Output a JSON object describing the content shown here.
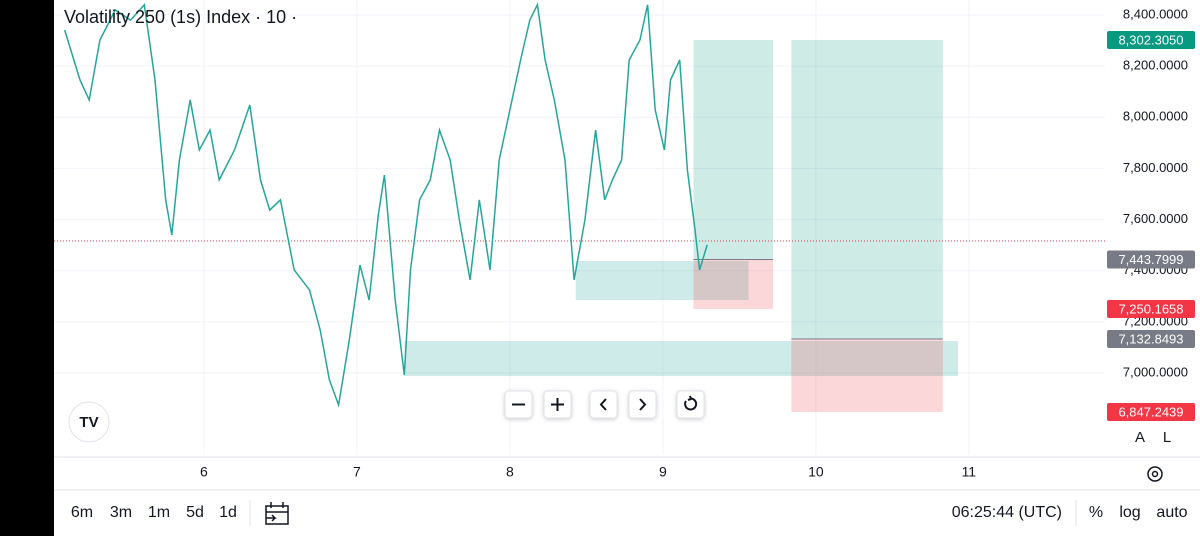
{
  "chart_data": {
    "type": "line",
    "title": "Volatility 250 (1s) Index · 10 ·",
    "x": [
      5.09,
      5.19,
      5.25,
      5.32,
      5.42,
      5.52,
      5.61,
      5.68,
      5.75,
      5.79,
      5.84,
      5.91,
      5.97,
      6.04,
      6.1,
      6.2,
      6.3,
      6.37,
      6.43,
      6.5,
      6.59,
      6.69,
      6.76,
      6.82,
      6.88,
      6.95,
      7.02,
      7.08,
      7.14,
      7.18,
      7.25,
      7.31,
      7.35,
      7.41,
      7.48,
      7.54,
      7.61,
      7.67,
      7.74,
      7.8,
      7.87,
      7.93,
      8.0,
      8.07,
      8.13,
      8.18,
      8.23,
      8.29,
      8.36,
      8.42,
      8.49,
      8.56,
      8.62,
      8.67,
      8.73,
      8.78,
      8.85,
      8.9,
      8.95,
      9.01,
      9.05,
      9.11,
      9.16,
      9.21,
      9.24,
      9.29
    ],
    "series": [
      {
        "color": "#26a69a",
        "values": [
          8341,
          8146,
          8068,
          8302,
          8420,
          8380,
          8440,
          8146,
          7677,
          7540,
          7833,
          8068,
          7872,
          7950,
          7755,
          7872,
          8048,
          7755,
          7637,
          7677,
          7403,
          7325,
          7168,
          6973,
          6875,
          7129,
          7422,
          7285,
          7618,
          7774,
          7285,
          6992,
          7403,
          7677,
          7755,
          7950,
          7833,
          7598,
          7364,
          7677,
          7403,
          7833,
          8029,
          8224,
          8380,
          8440,
          8224,
          8068,
          7833,
          7364,
          7598,
          7950,
          7677,
          7755,
          7833,
          8224,
          8302,
          8440,
          8029,
          7872,
          8146,
          8224,
          7794,
          7560,
          7403,
          7501
        ]
      }
    ],
    "xlim": [
      5.02,
      11.89
    ],
    "ylim": [
      6679.3,
      8458.7
    ],
    "xticks": [
      6,
      7,
      8,
      9,
      10,
      11
    ],
    "yticks": [
      {
        "value": 7000,
        "label": "7,000.0000"
      },
      {
        "value": 7200,
        "label": "7,200.0000"
      },
      {
        "value": 7400,
        "label": "7,400.0000"
      },
      {
        "value": 7600,
        "label": "7,600.0000"
      },
      {
        "value": 7800,
        "label": "7,800.0000"
      },
      {
        "value": 8000,
        "label": "8,000.0000"
      },
      {
        "value": 8200,
        "label": "8,200.0000"
      },
      {
        "value": 8400,
        "label": "8,400.0000"
      }
    ],
    "grid": true,
    "last_price": 7516,
    "zones": [
      {
        "x": [
          8.43,
          9.56
        ],
        "y": [
          7285,
          7438
        ]
      },
      {
        "x": [
          7.31,
          10.93
        ],
        "y": [
          6988,
          7125
        ]
      }
    ],
    "positions": [
      {
        "x": [
          9.2,
          9.72
        ],
        "entry": 7443.7999,
        "target": 8302.305,
        "stop": 7250.1658
      },
      {
        "x": [
          9.84,
          10.83
        ],
        "entry": 7132.8493,
        "target": 8302.305,
        "stop": 6847.2439
      }
    ],
    "price_tags": [
      {
        "value": 8302.305,
        "label": "8,302.3050",
        "color": "#089981"
      },
      {
        "value": 7443.7999,
        "label": "7,443.7999",
        "color": "#787b86"
      },
      {
        "value": 7250.1658,
        "label": "7,250.1658",
        "color": "#f23645"
      },
      {
        "value": 7132.8493,
        "label": "7,132.8493",
        "color": "#787b86"
      },
      {
        "value": 6847.2439,
        "label": "6,847.2439",
        "color": "#f23645"
      }
    ]
  },
  "ui": {
    "timeframes": [
      "6m",
      "3m",
      "1m",
      "5d",
      "1d"
    ],
    "clock": "06:25:44 (UTC)",
    "options": [
      "%",
      "log",
      "auto"
    ],
    "scale_buttons": [
      "A",
      "L"
    ]
  }
}
